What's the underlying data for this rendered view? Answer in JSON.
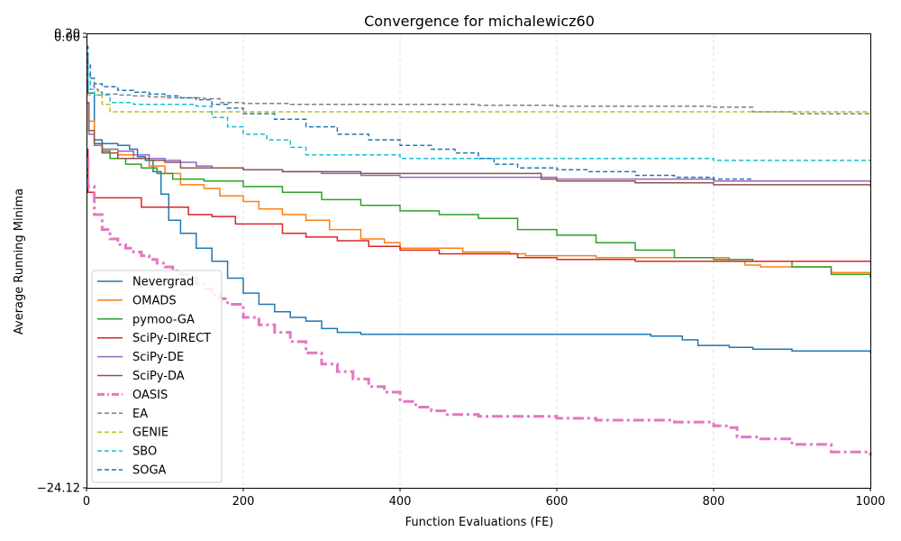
{
  "chart_data": {
    "type": "line",
    "title": "Convergence for michalewicz60",
    "xlabel": "Function Evaluations (FE)",
    "ylabel": "Average Running Minima",
    "xlim": [
      0,
      1000
    ],
    "ylim": [
      -24.12,
      0.2
    ],
    "x_ticks": [
      0,
      200,
      400,
      600,
      800,
      1000
    ],
    "x_tick_labels": [
      "0",
      "200",
      "400",
      "600",
      "800",
      "1000"
    ],
    "y_ticks": [
      0.2,
      0.0,
      -24.12
    ],
    "y_tick_labels": [
      "0.20",
      "0.00",
      "−24.12"
    ],
    "grid": true,
    "legend_position": "lower-left",
    "series": [
      {
        "name": "Nevergrad",
        "color": "#1f77b4",
        "style": "solid",
        "width": 1.5,
        "x": [
          0,
          2,
          10,
          20,
          40,
          55,
          65,
          75,
          85,
          95,
          105,
          120,
          140,
          160,
          180,
          200,
          220,
          240,
          260,
          280,
          300,
          320,
          350,
          500,
          600,
          710,
          720,
          750,
          760,
          780,
          800,
          820,
          850,
          900,
          950,
          1000
        ],
        "y": [
          -1.0,
          -3.0,
          -5.5,
          -5.7,
          -5.8,
          -6.0,
          -6.4,
          -6.6,
          -7.2,
          -8.4,
          -9.8,
          -10.5,
          -11.3,
          -12.0,
          -12.9,
          -13.7,
          -14.3,
          -14.7,
          -15.0,
          -15.2,
          -15.6,
          -15.8,
          -15.9,
          -15.9,
          -15.9,
          -15.9,
          -16.0,
          -16.0,
          -16.2,
          -16.5,
          -16.5,
          -16.6,
          -16.7,
          -16.8,
          -16.8,
          -16.9
        ]
      },
      {
        "name": "OMADS",
        "color": "#ff7f0e",
        "style": "solid",
        "width": 1.5,
        "x": [
          0,
          3,
          10,
          20,
          40,
          60,
          80,
          100,
          120,
          150,
          170,
          200,
          220,
          250,
          280,
          310,
          350,
          380,
          400,
          460,
          480,
          540,
          560,
          600,
          650,
          700,
          750,
          800,
          820,
          840,
          860,
          950,
          1000
        ],
        "y": [
          -3.5,
          -4.5,
          -5.8,
          -6.0,
          -6.3,
          -6.5,
          -6.9,
          -7.3,
          -7.9,
          -8.1,
          -8.5,
          -8.8,
          -9.2,
          -9.5,
          -9.8,
          -10.3,
          -10.8,
          -11.0,
          -11.3,
          -11.3,
          -11.5,
          -11.6,
          -11.7,
          -11.7,
          -11.8,
          -11.8,
          -11.8,
          -11.8,
          -12.0,
          -12.2,
          -12.3,
          -12.6,
          -12.9
        ]
      },
      {
        "name": "pymoo-GA",
        "color": "#2ca02c",
        "style": "solid",
        "width": 1.5,
        "x": [
          0,
          3,
          10,
          20,
          30,
          50,
          70,
          90,
          110,
          150,
          200,
          250,
          300,
          350,
          400,
          450,
          500,
          550,
          600,
          650,
          700,
          750,
          800,
          850,
          900,
          950,
          1000
        ],
        "y": [
          -3.5,
          -5.0,
          -5.8,
          -6.1,
          -6.5,
          -6.8,
          -7.0,
          -7.3,
          -7.6,
          -7.7,
          -8.0,
          -8.3,
          -8.7,
          -9.0,
          -9.3,
          -9.5,
          -9.7,
          -10.3,
          -10.6,
          -11.0,
          -11.4,
          -11.8,
          -11.9,
          -12.0,
          -12.3,
          -12.7,
          -12.9
        ]
      },
      {
        "name": "SciPy-DIRECT",
        "color": "#d62728",
        "style": "solid",
        "width": 1.5,
        "x": [
          0,
          2,
          10,
          70,
          130,
          160,
          190,
          250,
          280,
          320,
          360,
          400,
          450,
          550,
          600,
          700,
          800,
          900,
          1000
        ],
        "y": [
          -6.0,
          -8.3,
          -8.6,
          -9.1,
          -9.5,
          -9.6,
          -10.0,
          -10.5,
          -10.7,
          -10.9,
          -11.2,
          -11.4,
          -11.6,
          -11.8,
          -11.9,
          -12.0,
          -12.0,
          -12.0,
          -12.0
        ]
      },
      {
        "name": "SciPy-DE",
        "color": "#9467bd",
        "style": "solid",
        "width": 1.5,
        "x": [
          0,
          3,
          10,
          20,
          40,
          60,
          80,
          100,
          120,
          140,
          160,
          180,
          200,
          250,
          300,
          350,
          400,
          450,
          500,
          550,
          600,
          650,
          700,
          800,
          900,
          950,
          1000
        ],
        "y": [
          -3.5,
          -5.2,
          -5.8,
          -6.0,
          -6.1,
          -6.3,
          -6.5,
          -6.6,
          -6.7,
          -6.9,
          -7.0,
          -7.0,
          -7.1,
          -7.2,
          -7.3,
          -7.4,
          -7.5,
          -7.5,
          -7.5,
          -7.5,
          -7.6,
          -7.6,
          -7.6,
          -7.7,
          -7.7,
          -7.7,
          -7.8
        ]
      },
      {
        "name": "SciPy-DA",
        "color": "#8c564b",
        "style": "solid",
        "width": 1.5,
        "x": [
          0,
          3,
          10,
          20,
          40,
          60,
          80,
          100,
          120,
          140,
          200,
          250,
          300,
          350,
          400,
          500,
          570,
          580,
          600,
          650,
          700,
          750,
          800,
          850,
          900,
          950,
          1000
        ],
        "y": [
          -3.5,
          -5.0,
          -5.7,
          -6.2,
          -6.5,
          -6.5,
          -6.6,
          -6.7,
          -7.0,
          -7.0,
          -7.1,
          -7.2,
          -7.2,
          -7.3,
          -7.3,
          -7.3,
          -7.3,
          -7.6,
          -7.7,
          -7.7,
          -7.8,
          -7.8,
          -7.9,
          -7.9,
          -7.9,
          -7.9,
          -8.0
        ]
      },
      {
        "name": "OASIS",
        "color": "#e377c2",
        "style": "dashdot",
        "width": 3,
        "x": [
          0,
          2,
          10,
          20,
          30,
          40,
          50,
          60,
          70,
          80,
          90,
          100,
          110,
          120,
          130,
          140,
          150,
          160,
          170,
          180,
          200,
          220,
          240,
          260,
          280,
          300,
          320,
          340,
          360,
          380,
          400,
          420,
          440,
          460,
          500,
          560,
          600,
          650,
          700,
          750,
          800,
          820,
          830,
          860,
          900,
          950,
          1000
        ],
        "y": [
          -6.5,
          -8.0,
          -9.5,
          -10.3,
          -10.8,
          -11.1,
          -11.3,
          -11.5,
          -11.7,
          -11.9,
          -12.1,
          -12.3,
          -12.5,
          -12.7,
          -12.9,
          -13.2,
          -13.5,
          -13.8,
          -14.0,
          -14.3,
          -15.0,
          -15.4,
          -15.8,
          -16.3,
          -16.9,
          -17.5,
          -17.9,
          -18.3,
          -18.7,
          -19.0,
          -19.5,
          -19.8,
          -20.0,
          -20.2,
          -20.3,
          -20.3,
          -20.4,
          -20.5,
          -20.5,
          -20.6,
          -20.8,
          -20.9,
          -21.4,
          -21.5,
          -21.8,
          -22.2,
          -22.4
        ]
      },
      {
        "name": "EA",
        "color": "#7f7f7f",
        "style": "dashed",
        "width": 1.5,
        "x": [
          0,
          2,
          5,
          10,
          15,
          20,
          40,
          60,
          80,
          100,
          150,
          170,
          200,
          260,
          300,
          400,
          500,
          600,
          700,
          800,
          850,
          900,
          950,
          1000
        ],
        "y": [
          -1.0,
          -2.0,
          -2.6,
          -2.8,
          -2.95,
          -3.05,
          -3.1,
          -3.15,
          -3.2,
          -3.25,
          -3.3,
          -3.5,
          -3.55,
          -3.6,
          -3.6,
          -3.6,
          -3.65,
          -3.7,
          -3.7,
          -3.75,
          -4.0,
          -4.1,
          -4.1,
          -4.1
        ]
      },
      {
        "name": "GENIE",
        "color": "#bcbd22",
        "style": "dashed",
        "width": 1.5,
        "x": [
          0,
          5,
          10,
          20,
          30,
          40,
          100,
          200,
          300,
          400,
          500,
          600,
          700,
          800,
          900,
          1000
        ],
        "y": [
          -3.1,
          -3.1,
          -3.1,
          -3.6,
          -4.0,
          -4.0,
          -4.0,
          -4.0,
          -4.0,
          -4.0,
          -4.0,
          -4.0,
          -4.0,
          -4.0,
          -4.0,
          -4.0
        ]
      },
      {
        "name": "SBO",
        "color": "#17becf",
        "style": "dashed",
        "width": 1.5,
        "x": [
          0,
          2,
          5,
          10,
          30,
          60,
          100,
          120,
          140,
          160,
          180,
          200,
          230,
          260,
          280,
          330,
          380,
          400,
          500,
          600,
          700,
          800,
          900,
          1000
        ],
        "y": [
          -1.0,
          -2.3,
          -2.8,
          -3.1,
          -3.5,
          -3.6,
          -3.6,
          -3.6,
          -3.7,
          -4.3,
          -4.8,
          -5.2,
          -5.5,
          -5.9,
          -6.3,
          -6.3,
          -6.3,
          -6.5,
          -6.5,
          -6.5,
          -6.5,
          -6.6,
          -6.6,
          -6.6
        ]
      },
      {
        "name": "SOGA",
        "color": "#1f77b4",
        "style": "dashed",
        "width": 1.5,
        "x": [
          0,
          2,
          5,
          10,
          20,
          40,
          60,
          80,
          100,
          120,
          140,
          160,
          180,
          200,
          240,
          280,
          320,
          360,
          400,
          440,
          470,
          500,
          520,
          550,
          600,
          640,
          700,
          750,
          800,
          850
        ],
        "y": [
          -0.5,
          -1.5,
          -2.2,
          -2.5,
          -2.65,
          -2.85,
          -2.95,
          -3.05,
          -3.15,
          -3.25,
          -3.35,
          -3.6,
          -3.8,
          -4.1,
          -4.4,
          -4.8,
          -5.2,
          -5.5,
          -5.8,
          -6.0,
          -6.2,
          -6.5,
          -6.8,
          -7.0,
          -7.1,
          -7.2,
          -7.4,
          -7.5,
          -7.6,
          -7.7
        ]
      }
    ]
  }
}
